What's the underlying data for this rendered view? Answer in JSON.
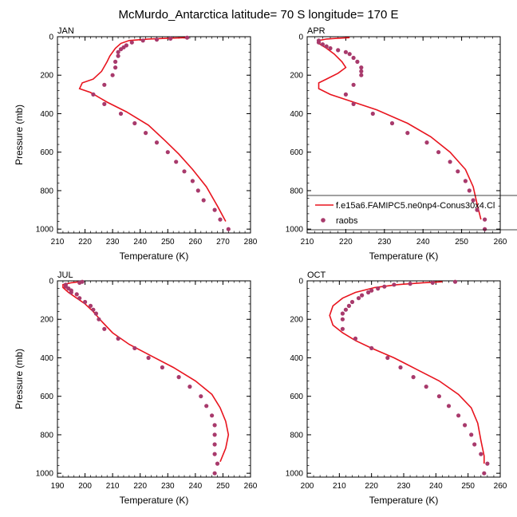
{
  "figure": {
    "title": "McMurdo_Antarctica  latitude= 70 S longitude= 170 E"
  },
  "legend": {
    "model_label": "f.e15a6.FAMIPC5.ne0np4-Conus30x4.Cl",
    "obs_label": "raobs"
  },
  "colors": {
    "model_line": "#e8141e",
    "obs_marker": "#a83a6c"
  },
  "chart_data": [
    {
      "type": "line",
      "month": "JAN",
      "xlabel": "Temperature (K)",
      "ylabel": "Pressure (mb)",
      "xlim": [
        210,
        280
      ],
      "ylim": [
        1020,
        0
      ],
      "xticks": [
        "210",
        "220",
        "230",
        "240",
        "250",
        "260",
        "270",
        "280"
      ],
      "yticks": [
        "0",
        "200",
        "400",
        "600",
        "800",
        "1000"
      ],
      "series": [
        {
          "kind": "line",
          "points": [
            [
              257,
              5
            ],
            [
              250,
              8
            ],
            [
              243,
              12
            ],
            [
              236,
              20
            ],
            [
              233,
              35
            ],
            [
              231,
              60
            ],
            [
              229,
              100
            ],
            [
              228,
              130
            ],
            [
              226,
              180
            ],
            [
              223,
              220
            ],
            [
              219,
              240
            ],
            [
              218,
              270
            ],
            [
              222,
              290
            ],
            [
              228,
              340
            ],
            [
              235,
              390
            ],
            [
              243,
              460
            ],
            [
              249,
              540
            ],
            [
              254,
              610
            ],
            [
              259,
              690
            ],
            [
              264,
              780
            ],
            [
              268,
              880
            ],
            [
              271,
              960
            ]
          ]
        },
        {
          "kind": "scatter",
          "points": [
            [
              257,
              5
            ],
            [
              251,
              10
            ],
            [
              246,
              15
            ],
            [
              241,
              20
            ],
            [
              237,
              30
            ],
            [
              235,
              45
            ],
            [
              234,
              55
            ],
            [
              233,
              65
            ],
            [
              232,
              80
            ],
            [
              232,
              100
            ],
            [
              231,
              130
            ],
            [
              231,
              160
            ],
            [
              230,
              200
            ],
            [
              227,
              250
            ],
            [
              223,
              300
            ],
            [
              227,
              350
            ],
            [
              233,
              400
            ],
            [
              238,
              450
            ],
            [
              242,
              500
            ],
            [
              246,
              550
            ],
            [
              250,
              600
            ],
            [
              253,
              650
            ],
            [
              256,
              700
            ],
            [
              259,
              750
            ],
            [
              261,
              800
            ],
            [
              263,
              850
            ],
            [
              267,
              900
            ],
            [
              269,
              950
            ],
            [
              272,
              1000
            ]
          ]
        }
      ]
    },
    {
      "type": "line",
      "month": "APR",
      "xlabel": "Temperature (K)",
      "ylabel": "",
      "xlim": [
        210,
        260
      ],
      "ylim": [
        1020,
        0
      ],
      "xticks": [
        "210",
        "220",
        "230",
        "240",
        "250",
        "260"
      ],
      "yticks": [
        "0",
        "200",
        "400",
        "600",
        "800",
        "1000"
      ],
      "series": [
        {
          "kind": "line",
          "points": [
            [
              221,
              5
            ],
            [
              218,
              8
            ],
            [
              215,
              12
            ],
            [
              213,
              20
            ],
            [
              213,
              35
            ],
            [
              215,
              60
            ],
            [
              217,
              90
            ],
            [
              219,
              130
            ],
            [
              220,
              160
            ],
            [
              218,
              190
            ],
            [
              215,
              220
            ],
            [
              213,
              240
            ],
            [
              213,
              270
            ],
            [
              216,
              300
            ],
            [
              222,
              340
            ],
            [
              228,
              380
            ],
            [
              236,
              450
            ],
            [
              242,
              520
            ],
            [
              247,
              600
            ],
            [
              251,
              690
            ],
            [
              253,
              780
            ],
            [
              254,
              870
            ],
            [
              255,
              950
            ]
          ]
        },
        {
          "kind": "scatter",
          "points": [
            [
              213,
              20
            ],
            [
              213,
              30
            ],
            [
              214,
              40
            ],
            [
              215,
              50
            ],
            [
              216,
              60
            ],
            [
              218,
              70
            ],
            [
              220,
              80
            ],
            [
              221,
              90
            ],
            [
              222,
              110
            ],
            [
              223,
              130
            ],
            [
              224,
              160
            ],
            [
              224,
              180
            ],
            [
              224,
              200
            ],
            [
              222,
              250
            ],
            [
              220,
              300
            ],
            [
              222,
              350
            ],
            [
              227,
              400
            ],
            [
              232,
              450
            ],
            [
              236,
              500
            ],
            [
              241,
              550
            ],
            [
              244,
              600
            ],
            [
              247,
              650
            ],
            [
              249,
              700
            ],
            [
              251,
              750
            ],
            [
              252,
              800
            ],
            [
              253,
              850
            ],
            [
              254,
              900
            ],
            [
              256,
              950
            ],
            [
              256,
              1000
            ]
          ]
        }
      ]
    },
    {
      "type": "line",
      "month": "JUL",
      "xlabel": "Temperature (K)",
      "ylabel": "Pressure (mb)",
      "xlim": [
        190,
        260
      ],
      "ylim": [
        1020,
        0
      ],
      "xticks": [
        "190",
        "200",
        "210",
        "220",
        "230",
        "240",
        "250",
        "260"
      ],
      "yticks": [
        "0",
        "200",
        "400",
        "600",
        "800",
        "1000"
      ],
      "series": [
        {
          "kind": "line",
          "points": [
            [
              198,
              5
            ],
            [
              195,
              10
            ],
            [
              192,
              20
            ],
            [
              192,
              35
            ],
            [
              194,
              60
            ],
            [
              197,
              90
            ],
            [
              200,
              120
            ],
            [
              203,
              160
            ],
            [
              206,
              210
            ],
            [
              210,
              270
            ],
            [
              216,
              330
            ],
            [
              224,
              390
            ],
            [
              232,
              450
            ],
            [
              240,
              520
            ],
            [
              246,
              590
            ],
            [
              249,
              660
            ],
            [
              251,
              730
            ],
            [
              252,
              800
            ],
            [
              251,
              870
            ],
            [
              249,
              940
            ]
          ]
        },
        {
          "kind": "scatter",
          "points": [
            [
              199,
              5
            ],
            [
              198,
              10
            ],
            [
              193,
              20
            ],
            [
              193,
              30
            ],
            [
              194,
              40
            ],
            [
              195,
              50
            ],
            [
              195,
              60
            ],
            [
              197,
              70
            ],
            [
              198,
              90
            ],
            [
              200,
              110
            ],
            [
              202,
              130
            ],
            [
              203,
              150
            ],
            [
              204,
              170
            ],
            [
              205,
              200
            ],
            [
              207,
              250
            ],
            [
              212,
              300
            ],
            [
              218,
              350
            ],
            [
              223,
              400
            ],
            [
              228,
              450
            ],
            [
              234,
              500
            ],
            [
              238,
              550
            ],
            [
              242,
              600
            ],
            [
              244,
              650
            ],
            [
              246,
              700
            ],
            [
              247,
              750
            ],
            [
              247,
              800
            ],
            [
              247,
              850
            ],
            [
              247,
              900
            ],
            [
              248,
              950
            ],
            [
              247,
              1000
            ]
          ]
        }
      ]
    },
    {
      "type": "line",
      "month": "OCT",
      "xlabel": "Temperature (K)",
      "ylabel": "",
      "xlim": [
        200,
        260
      ],
      "ylim": [
        1020,
        0
      ],
      "xticks": [
        "200",
        "210",
        "220",
        "230",
        "240",
        "250",
        "260"
      ],
      "yticks": [
        "0",
        "200",
        "400",
        "600",
        "800",
        "1000"
      ],
      "series": [
        {
          "kind": "line",
          "points": [
            [
              242,
              5
            ],
            [
              236,
              10
            ],
            [
              228,
              20
            ],
            [
              221,
              35
            ],
            [
              215,
              60
            ],
            [
              211,
              90
            ],
            [
              208,
              130
            ],
            [
              207,
              180
            ],
            [
              208,
              230
            ],
            [
              211,
              270
            ],
            [
              215,
              310
            ],
            [
              220,
              350
            ],
            [
              227,
              400
            ],
            [
              234,
              460
            ],
            [
              241,
              520
            ],
            [
              247,
              590
            ],
            [
              251,
              660
            ],
            [
              253,
              740
            ],
            [
              254,
              830
            ],
            [
              255,
              910
            ],
            [
              255,
              950
            ]
          ]
        },
        {
          "kind": "scatter",
          "points": [
            [
              246,
              5
            ],
            [
              239,
              10
            ],
            [
              232,
              15
            ],
            [
              227,
              20
            ],
            [
              224,
              30
            ],
            [
              222,
              40
            ],
            [
              220,
              50
            ],
            [
              219,
              60
            ],
            [
              217,
              75
            ],
            [
              216,
              90
            ],
            [
              214,
              110
            ],
            [
              213,
              130
            ],
            [
              212,
              150
            ],
            [
              211,
              170
            ],
            [
              211,
              200
            ],
            [
              211,
              250
            ],
            [
              215,
              300
            ],
            [
              220,
              350
            ],
            [
              225,
              400
            ],
            [
              229,
              450
            ],
            [
              233,
              500
            ],
            [
              237,
              550
            ],
            [
              241,
              600
            ],
            [
              244,
              650
            ],
            [
              247,
              700
            ],
            [
              249,
              750
            ],
            [
              251,
              800
            ],
            [
              252,
              850
            ],
            [
              254,
              900
            ],
            [
              256,
              950
            ],
            [
              255,
              1000
            ]
          ]
        }
      ]
    }
  ]
}
